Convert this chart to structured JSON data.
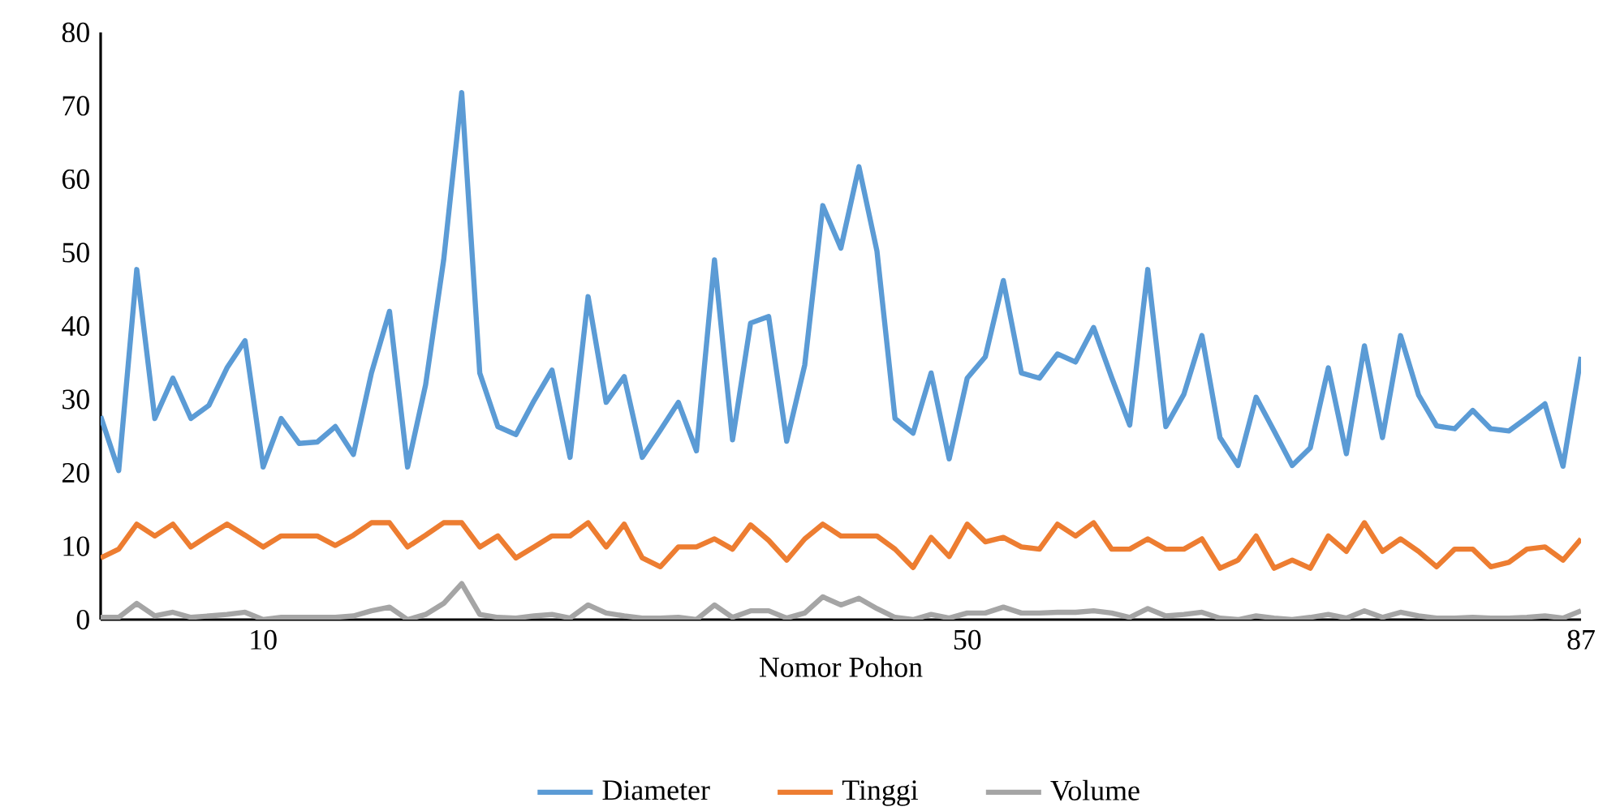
{
  "chart_data": {
    "type": "line",
    "xlabel": "Nomor Pohon",
    "categories": [
      null,
      null,
      null,
      null,
      null,
      null,
      null,
      null,
      null,
      "10",
      null,
      null,
      null,
      null,
      null,
      null,
      null,
      null,
      null,
      null,
      null,
      null,
      null,
      null,
      null,
      null,
      null,
      null,
      null,
      null,
      null,
      null,
      null,
      null,
      null,
      null,
      null,
      null,
      null,
      null,
      null,
      null,
      null,
      null,
      null,
      null,
      null,
      null,
      "50",
      null,
      null,
      null,
      null,
      null,
      null,
      null,
      null,
      null,
      null,
      null,
      null,
      null,
      null,
      null,
      null,
      null,
      null,
      null,
      null,
      null,
      null,
      null,
      null,
      null,
      null,
      null,
      null,
      null,
      null,
      null,
      null,
      null,
      "87"
    ],
    "series": [
      {
        "name": "Diameter",
        "color": "#5b9bd5",
        "values": [
          27.7,
          20.3,
          47.7,
          27.4,
          32.9,
          27.4,
          29.2,
          34.3,
          38,
          20.8,
          27.4,
          24,
          24.2,
          26.3,
          22.5,
          33.6,
          42,
          20.8,
          32,
          49,
          71.8,
          33.6,
          26.3,
          25.2,
          29.8,
          34,
          22.1,
          44,
          29.6,
          33.1,
          22.1,
          25.8,
          29.6,
          23,
          49,
          24.5,
          40.4,
          41.3,
          24.3,
          34.7,
          56.4,
          50.6,
          61.7,
          50.2,
          27.4,
          25.4,
          33.6,
          21.9,
          32.9,
          35.8,
          46.2,
          33.6,
          32.9,
          36.2,
          35.1,
          39.8,
          33,
          26.5,
          47.7,
          26.3,
          30.7,
          38.7,
          24.8,
          21,
          30.3,
          25.7,
          21,
          23.4,
          34.3,
          22.6,
          37.3,
          24.8,
          38.7,
          30.6,
          26.4,
          26,
          28.5,
          26,
          25.7,
          27.5,
          29.4,
          20.9,
          35.8
        ]
      },
      {
        "name": "Tinggi",
        "color": "#ed7d31",
        "values": [
          8.4,
          9.6,
          13,
          11.4,
          13,
          9.9,
          11.5,
          13,
          11.5,
          9.9,
          11.4,
          11.4,
          11.4,
          10.1,
          11.5,
          13.2,
          13.2,
          9.9,
          11.5,
          13.2,
          13.2,
          9.9,
          11.4,
          8.4,
          9.9,
          11.4,
          11.4,
          13.2,
          9.9,
          13,
          8.4,
          7.2,
          9.9,
          9.9,
          11,
          9.6,
          12.9,
          10.8,
          8.1,
          11,
          13,
          11.4,
          11.4,
          11.4,
          9.6,
          7.1,
          11.2,
          8.6,
          13,
          10.6,
          11.2,
          9.9,
          9.6,
          13,
          11.4,
          13.2,
          9.6,
          9.6,
          11,
          9.6,
          9.6,
          11,
          7,
          8.1,
          11.4,
          7,
          8.1,
          7,
          11.4,
          9.3,
          13.2,
          9.3,
          11,
          9.3,
          7.2,
          9.6,
          9.6,
          7.2,
          7.8,
          9.6,
          9.9,
          8.1,
          11
        ]
      },
      {
        "name": "Volume",
        "color": "#a5a5a5",
        "values": [
          0.3,
          0.3,
          2.2,
          0.5,
          1,
          0.3,
          0.5,
          0.7,
          1,
          0,
          0.3,
          0.3,
          0.3,
          0.3,
          0.5,
          1.2,
          1.7,
          0,
          0.7,
          2.2,
          4.9,
          0.7,
          0.3,
          0.2,
          0.5,
          0.7,
          0.2,
          2,
          0.9,
          0.5,
          0.2,
          0.2,
          0.3,
          0,
          2,
          0.3,
          1.2,
          1.2,
          0.2,
          0.9,
          3.1,
          2,
          2.9,
          1.5,
          0.3,
          0,
          0.7,
          0.2,
          0.9,
          0.9,
          1.7,
          0.9,
          0.9,
          1,
          1,
          1.2,
          0.9,
          0.3,
          1.5,
          0.5,
          0.7,
          1,
          0.2,
          0,
          0.5,
          0.2,
          0,
          0.3,
          0.7,
          0.2,
          1.2,
          0.3,
          1,
          0.5,
          0.2,
          0.2,
          0.3,
          0.2,
          0.2,
          0.3,
          0.5,
          0.2,
          1.2
        ]
      }
    ],
    "ylim": [
      0,
      80
    ],
    "yticks": [
      0,
      10,
      20,
      30,
      40,
      50,
      60,
      70,
      80
    ],
    "legend": "bottom",
    "marker": "none",
    "line_style": "solid"
  }
}
